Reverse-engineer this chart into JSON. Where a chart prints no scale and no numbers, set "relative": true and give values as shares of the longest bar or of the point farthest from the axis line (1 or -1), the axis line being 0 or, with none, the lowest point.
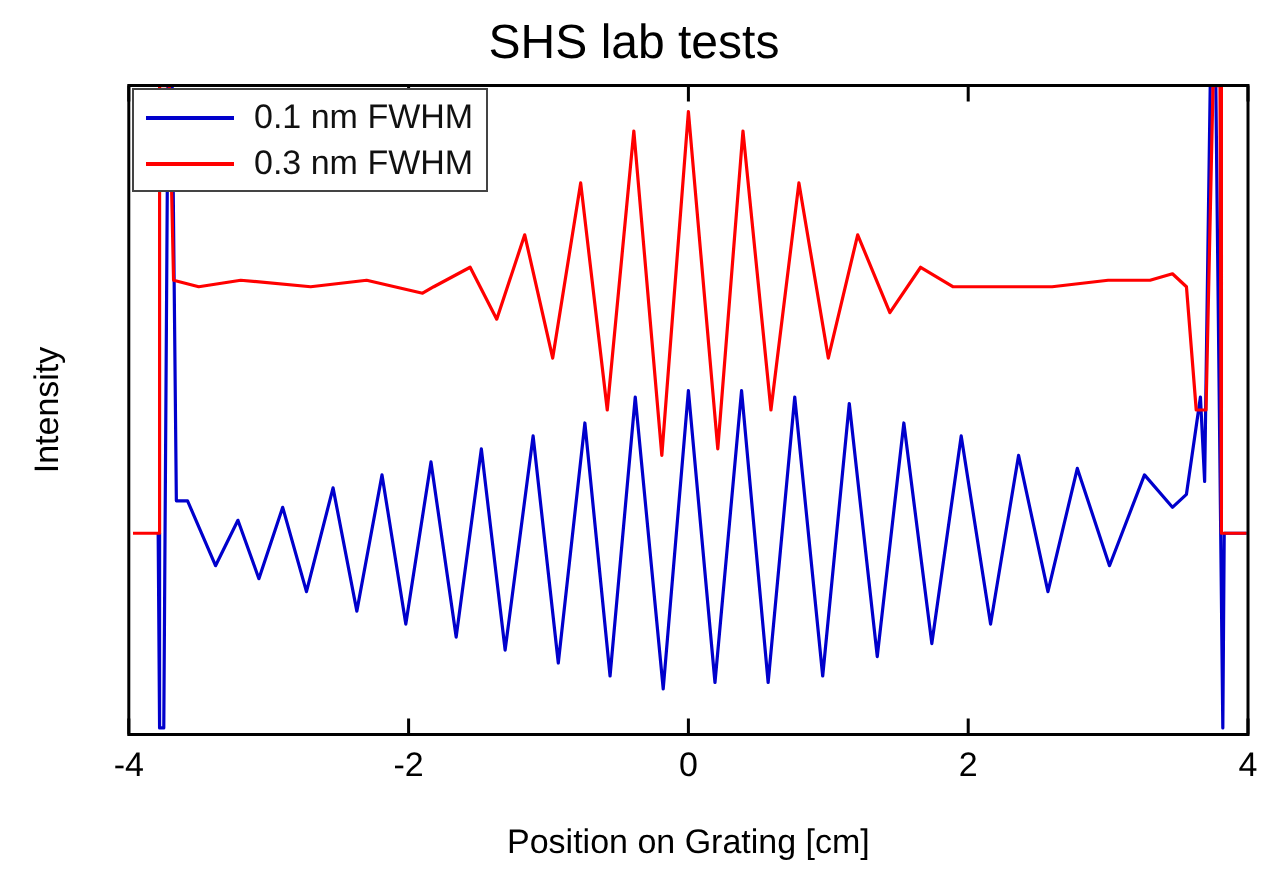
{
  "chart_data": {
    "type": "line",
    "title": "SHS lab tests",
    "xlabel": "Position on Grating [cm]",
    "ylabel": "Intensity",
    "relative": true,
    "xlim": [
      -4,
      4
    ],
    "xticks": [
      -4,
      -2,
      0,
      2,
      4
    ],
    "grid": false,
    "legend": "top left",
    "marker": "none",
    "line_style": "solid",
    "series": [
      {
        "name": "0.1 nm FWHM",
        "color": "#0000cc",
        "x": [
          -3.79,
          -3.78,
          -3.75,
          -3.72,
          -3.69,
          -3.66,
          -3.58,
          -3.38,
          -3.22,
          -3.07,
          -2.9,
          -2.73,
          -2.54,
          -2.37,
          -2.19,
          -2.02,
          -1.84,
          -1.66,
          -1.48,
          -1.31,
          -1.11,
          -0.93,
          -0.74,
          -0.56,
          -0.38,
          -0.18,
          0,
          0.19,
          0.38,
          0.57,
          0.76,
          0.96,
          1.15,
          1.35,
          1.54,
          1.74,
          1.95,
          2.16,
          2.36,
          2.57,
          2.78,
          3.01,
          3.26,
          3.46,
          3.56,
          3.66,
          3.69,
          3.73,
          3.77,
          3.82,
          3.83,
          3.99
        ],
        "values": [
          0.31,
          0.01,
          0.01,
          1,
          1,
          0.36,
          0.36,
          0.26,
          0.33,
          0.24,
          0.35,
          0.22,
          0.38,
          0.19,
          0.4,
          0.17,
          0.42,
          0.15,
          0.44,
          0.13,
          0.46,
          0.11,
          0.48,
          0.09,
          0.52,
          0.07,
          0.53,
          0.08,
          0.53,
          0.08,
          0.52,
          0.09,
          0.51,
          0.12,
          0.48,
          0.14,
          0.46,
          0.17,
          0.43,
          0.22,
          0.41,
          0.26,
          0.4,
          0.35,
          0.37,
          0.52,
          0.39,
          1,
          1,
          0.01,
          0.31,
          0.31
        ]
      },
      {
        "name": "0.3 nm FWHM",
        "color": "#ff0000",
        "x": [
          -3.97,
          -3.79,
          -3.78,
          -3.71,
          -3.68,
          -3.5,
          -3.2,
          -2.7,
          -2.3,
          -1.9,
          -1.82,
          -1.56,
          -1.37,
          -1.17,
          -0.97,
          -0.77,
          -0.58,
          -0.39,
          -0.19,
          0,
          0.21,
          0.39,
          0.59,
          0.79,
          1.0,
          1.21,
          1.44,
          1.66,
          1.89,
          2.2,
          2.6,
          3.0,
          3.3,
          3.46,
          3.56,
          3.63,
          3.7,
          3.75,
          3.8,
          3.81,
          3.99
        ],
        "values": [
          0.31,
          0.31,
          1,
          1,
          0.7,
          0.69,
          0.7,
          0.69,
          0.7,
          0.68,
          0.69,
          0.72,
          0.64,
          0.77,
          0.58,
          0.85,
          0.5,
          0.93,
          0.43,
          0.96,
          0.44,
          0.93,
          0.5,
          0.85,
          0.58,
          0.77,
          0.65,
          0.72,
          0.69,
          0.69,
          0.69,
          0.7,
          0.7,
          0.71,
          0.69,
          0.5,
          0.5,
          1,
          1,
          0.31,
          0.31
        ]
      }
    ]
  }
}
